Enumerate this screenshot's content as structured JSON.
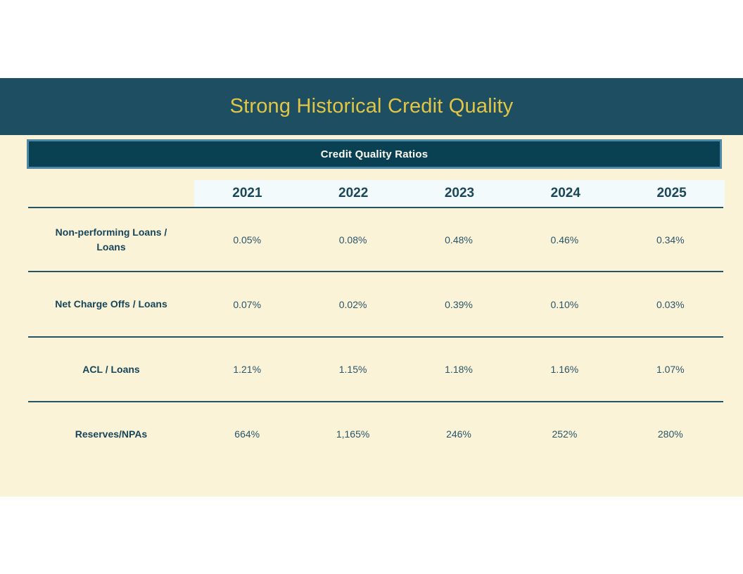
{
  "slide": {
    "title": "Strong Historical Credit Quality"
  },
  "table": {
    "title": "Credit Quality Ratios",
    "years": [
      "2021",
      "2022",
      "2023",
      "2024",
      "2025"
    ],
    "rows": [
      {
        "label": "Non-performing Loans / Loans",
        "values": [
          "0.05%",
          "0.08%",
          "0.48%",
          "0.46%",
          "0.34%"
        ]
      },
      {
        "label": "Net Charge Offs / Loans",
        "values": [
          "0.07%",
          "0.02%",
          "0.39%",
          "0.10%",
          "0.03%"
        ]
      },
      {
        "label": "ACL / Loans",
        "values": [
          "1.21%",
          "1.15%",
          "1.18%",
          "1.16%",
          "1.07%"
        ]
      },
      {
        "label": "Reserves/NPAs",
        "values": [
          "664%",
          "1,165%",
          "246%",
          "252%",
          "280%"
        ]
      }
    ]
  },
  "chart_data": {
    "type": "table",
    "title": "Credit Quality Ratios",
    "categories": [
      "2021",
      "2022",
      "2023",
      "2024",
      "2025"
    ],
    "series": [
      {
        "name": "Non-performing Loans / Loans",
        "values": [
          0.05,
          0.08,
          0.48,
          0.46,
          0.34
        ],
        "unit": "%"
      },
      {
        "name": "Net Charge Offs / Loans",
        "values": [
          0.07,
          0.02,
          0.39,
          0.1,
          0.03
        ],
        "unit": "%"
      },
      {
        "name": "ACL / Loans",
        "values": [
          1.21,
          1.15,
          1.18,
          1.16,
          1.07
        ],
        "unit": "%"
      },
      {
        "name": "Reserves/NPAs",
        "values": [
          664,
          1165,
          246,
          252,
          280
        ],
        "unit": "%"
      }
    ]
  },
  "colors": {
    "title_bar": "#1d4e61",
    "title_text": "#e3c545",
    "banner_fill": "#0a4152",
    "banner_border": "#4e88a6",
    "banner_text": "#fdfdf6",
    "content_bg": "#faf3d8",
    "year_strip_bg": "#f2fafb",
    "table_text": "#17455a",
    "divider_line": "#235567"
  }
}
